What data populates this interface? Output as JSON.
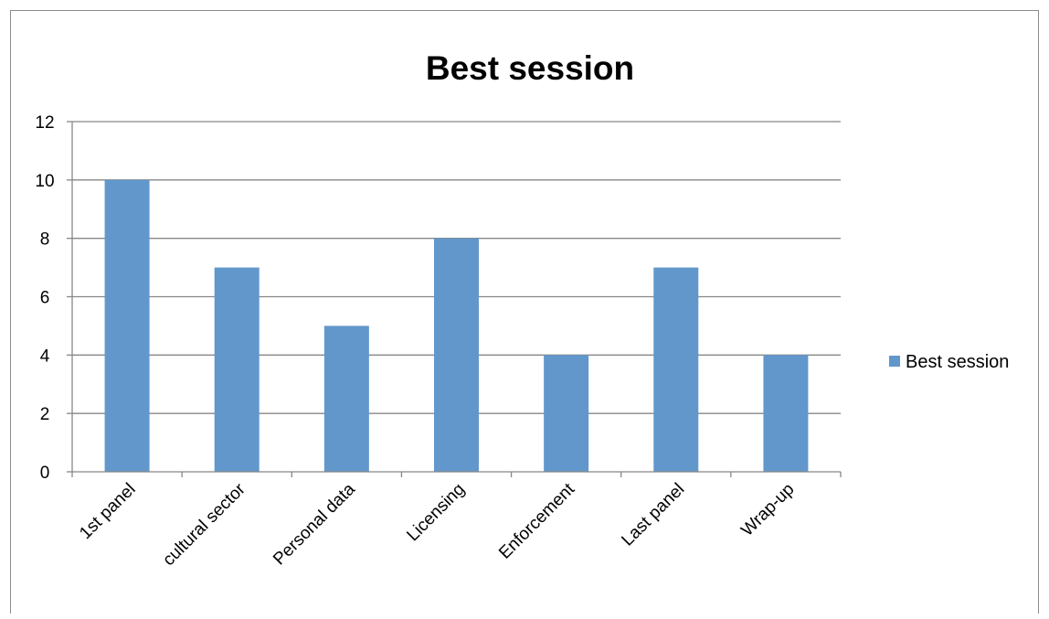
{
  "chart_data": {
    "type": "bar",
    "title": "Best session",
    "xlabel": "",
    "ylabel": "",
    "categories": [
      "1st panel",
      "cultural sector",
      "Personal data",
      "Licensing",
      "Enforcement",
      "Last panel",
      "Wrap-up"
    ],
    "series": [
      {
        "name": "Best session",
        "values": [
          10,
          7,
          5,
          8,
          4,
          7,
          4
        ],
        "color": "#6297cb"
      }
    ],
    "ylim": [
      0,
      12
    ],
    "yticks": [
      0,
      2,
      4,
      6,
      8,
      10,
      12
    ],
    "grid": true,
    "gridline_color": "#878787",
    "legend_position": "right"
  }
}
